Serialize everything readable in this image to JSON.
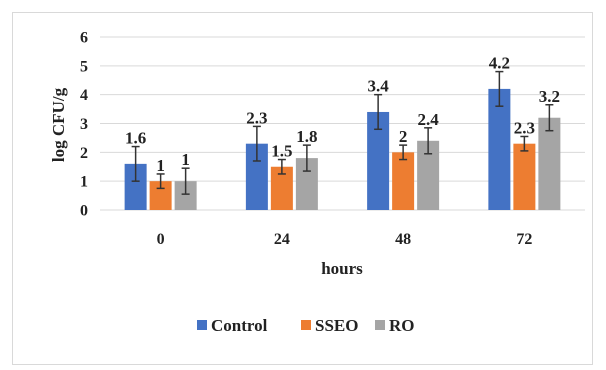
{
  "chart_data": {
    "type": "bar",
    "title": "",
    "xlabel": "hours",
    "ylabel": "log CFU/g",
    "categories": [
      "0",
      "24",
      "48",
      "72"
    ],
    "ylim": [
      0,
      6
    ],
    "yticks": [
      "0",
      "1",
      "2",
      "3",
      "4",
      "5",
      "6"
    ],
    "grid": true,
    "legend_position": "bottom",
    "series": [
      {
        "name": "Control",
        "color": "#4472C4",
        "values": [
          1.6,
          2.3,
          3.4,
          4.2
        ],
        "labels": [
          "1.6",
          "2.3",
          "3.4",
          "4.2"
        ],
        "error": [
          0.6,
          0.6,
          0.6,
          0.6
        ]
      },
      {
        "name": "SSEO",
        "color": "#ED7D31",
        "values": [
          1.0,
          1.5,
          2.0,
          2.3
        ],
        "labels": [
          "1",
          "1.5",
          "2",
          "2.3"
        ],
        "error": [
          0.25,
          0.25,
          0.25,
          0.25
        ]
      },
      {
        "name": "RO",
        "color": "#A5A5A5",
        "values": [
          1.0,
          1.8,
          2.4,
          3.2
        ],
        "labels": [
          "1",
          "1.8",
          "2.4",
          "3.2"
        ],
        "error": [
          0.45,
          0.45,
          0.45,
          0.45
        ]
      }
    ]
  }
}
